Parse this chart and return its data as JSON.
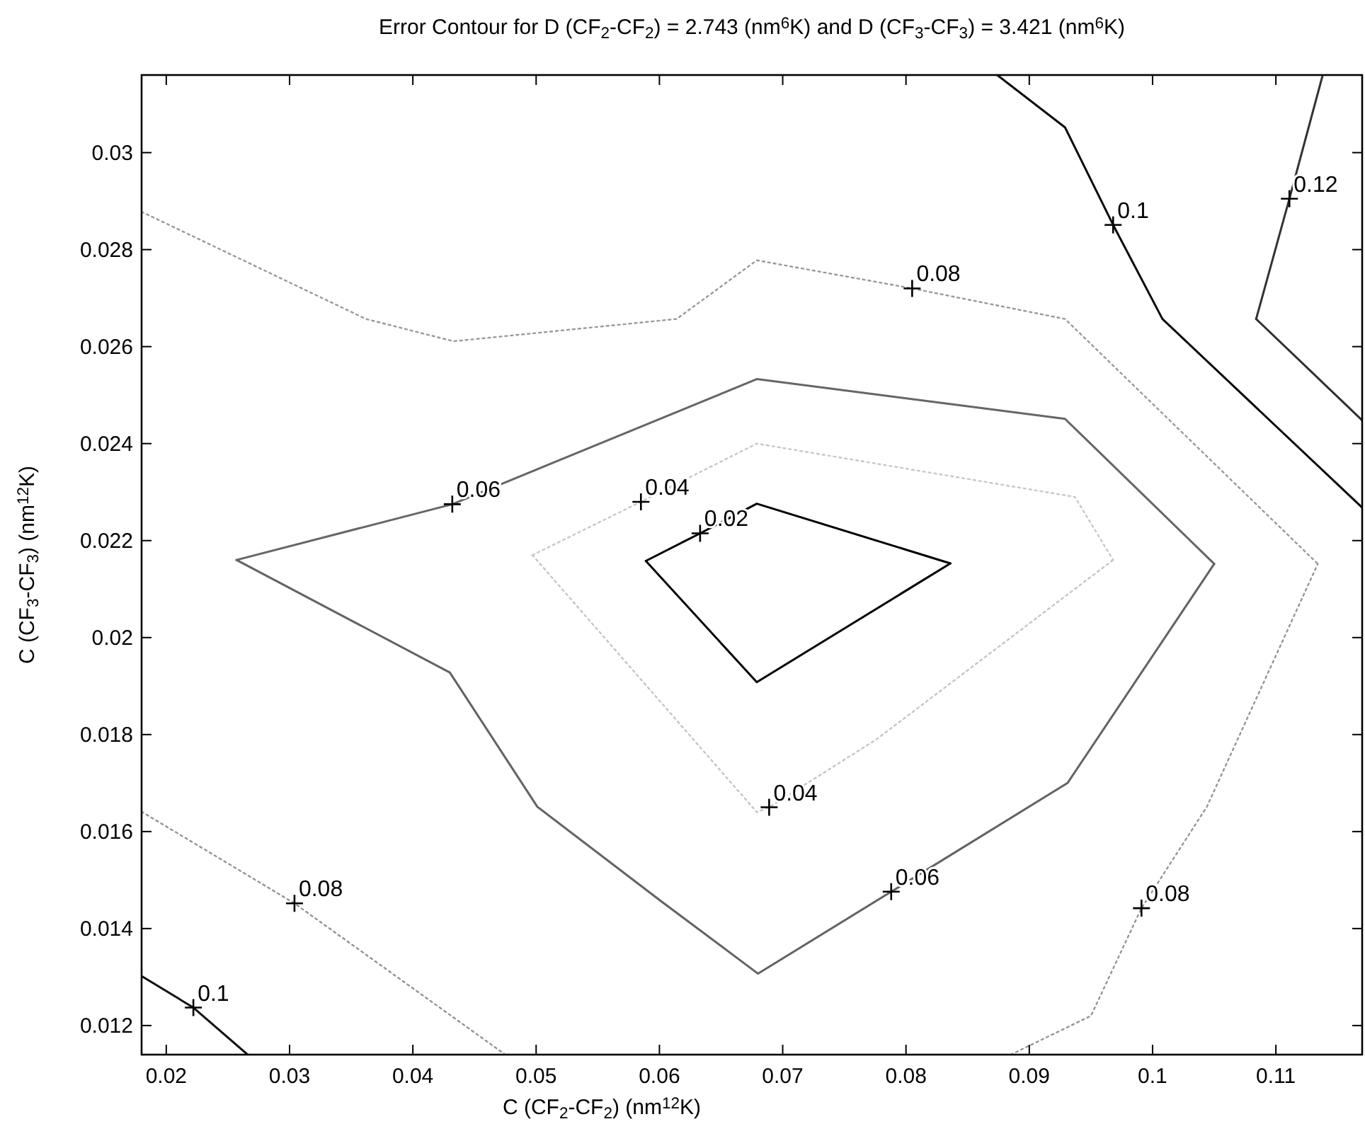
{
  "chart_data": {
    "type": "line",
    "title": "Error Contour for D (CF$_{2}$-CF$_{2}$) = 2.743 (nm$^{6}$K) and  D (CF$_{3}$-CF$_{3}$) = 3.421 (nm$^{6}$K)",
    "xlabel": "C (CF$_{2}$-CF$_{2}$) (nm$^{12}$K)",
    "ylabel": "C (CF$_{3}$-CF$_{3}$) (nm$^{12}$K)",
    "xlim": [
      0.018,
      0.117
    ],
    "ylim": [
      0.0114,
      0.0316
    ],
    "xticks": [
      0.02,
      0.03,
      0.04,
      0.05,
      0.06,
      0.07,
      0.08,
      0.09,
      0.1,
      0.11
    ],
    "yticks": [
      0.012,
      0.014,
      0.016,
      0.018,
      0.02,
      0.022,
      0.024,
      0.026,
      0.028,
      0.03
    ],
    "grid": false,
    "marker": "none",
    "series": [
      {
        "color": "#000000",
        "line_style": "solid",
        "x": [
          0.0589,
          0.0633,
          0.0679,
          0.0836
        ],
        "values": [
          0.02158,
          0.02215,
          0.02276,
          0.02153
        ]
      },
      {
        "color": "#030303",
        "line_style": "solid",
        "x": [
          0.0589,
          0.0679,
          0.0836
        ],
        "values": [
          0.02158,
          0.01908,
          0.02153
        ]
      },
      {
        "color": "#c8c8c8",
        "line_style": "dotted",
        "x": [
          0.0497,
          0.0585,
          0.0679,
          0.0937,
          0.0968
        ],
        "values": [
          0.0217,
          0.0228,
          0.024,
          0.0229,
          0.0216
        ]
      },
      {
        "color": "#c5c5c5",
        "line_style": "dotted",
        "x": [
          0.0497,
          0.0679,
          0.0689,
          0.0776,
          0.0968
        ],
        "values": [
          0.0217,
          0.0164,
          0.0165,
          0.0179,
          0.0216
        ]
      },
      {
        "color": "#666666",
        "line_style": "solid",
        "x": [
          0.0257,
          0.0432,
          0.0679,
          0.0929,
          0.105
        ],
        "values": [
          0.0216,
          0.02275,
          0.02533,
          0.02451,
          0.02152
        ]
      },
      {
        "color": "#636363",
        "line_style": "solid",
        "x": [
          0.0257,
          0.043,
          0.0501,
          0.0601,
          0.068,
          0.0788,
          0.0931,
          0.105
        ],
        "values": [
          0.0216,
          0.01928,
          0.01651,
          0.01457,
          0.01307,
          0.01476,
          0.017,
          0.02152
        ]
      },
      {
        "color": "#999999",
        "line_style": "dotted",
        "x": [
          0.018,
          0.0362,
          0.0433,
          0.0614,
          0.0679,
          0.0805,
          0.0929,
          0.1134
        ],
        "values": [
          0.02878,
          0.02657,
          0.02611,
          0.02657,
          0.02778,
          0.0272,
          0.02657,
          0.02152
        ]
      },
      {
        "color": "#969696",
        "line_style": "dotted",
        "x": [
          0.0885,
          0.095,
          0.0991,
          0.1044,
          0.1134
        ],
        "values": [
          0.0114,
          0.0122,
          0.01442,
          0.01651,
          0.02152
        ]
      },
      {
        "color": "#939393",
        "line_style": "dotted",
        "x": [
          0.018,
          0.0304,
          0.0475
        ],
        "values": [
          0.01641,
          0.01452,
          0.0114
        ]
      },
      {
        "color": "#0a0a0a",
        "line_style": "solid",
        "x": [
          0.0874,
          0.0929,
          0.0968,
          0.1008,
          0.117
        ],
        "values": [
          0.0316,
          0.03052,
          0.02851,
          0.02657,
          0.02268
        ]
      },
      {
        "color": "#111111",
        "line_style": "solid",
        "x": [
          0.018,
          0.0222,
          0.0266
        ],
        "values": [
          0.01302,
          0.01237,
          0.0114
        ]
      },
      {
        "color": "#333333",
        "line_style": "solid",
        "x": [
          0.1084,
          0.1111,
          0.1138
        ],
        "values": [
          0.02657,
          0.02905,
          0.0316
        ]
      },
      {
        "color": "#303030",
        "line_style": "solid",
        "x": [
          0.1084,
          0.117
        ],
        "values": [
          0.02657,
          0.02448
        ]
      }
    ],
    "annotations": [
      {
        "text": "0.02",
        "x": 0.0633,
        "y": 0.02215
      },
      {
        "text": "0.04",
        "x": 0.0585,
        "y": 0.0228
      },
      {
        "text": "0.04",
        "x": 0.0689,
        "y": 0.0165
      },
      {
        "text": "0.06",
        "x": 0.0432,
        "y": 0.02275
      },
      {
        "text": "0.06",
        "x": 0.0788,
        "y": 0.01476
      },
      {
        "text": "0.08",
        "x": 0.0805,
        "y": 0.0272
      },
      {
        "text": "0.08",
        "x": 0.0304,
        "y": 0.01452
      },
      {
        "text": "0.08",
        "x": 0.0991,
        "y": 0.01442
      },
      {
        "text": "0.1",
        "x": 0.0968,
        "y": 0.02851
      },
      {
        "text": "0.1",
        "x": 0.0222,
        "y": 0.01237
      },
      {
        "text": "0.12",
        "x": 0.1111,
        "y": 0.02905
      }
    ]
  }
}
